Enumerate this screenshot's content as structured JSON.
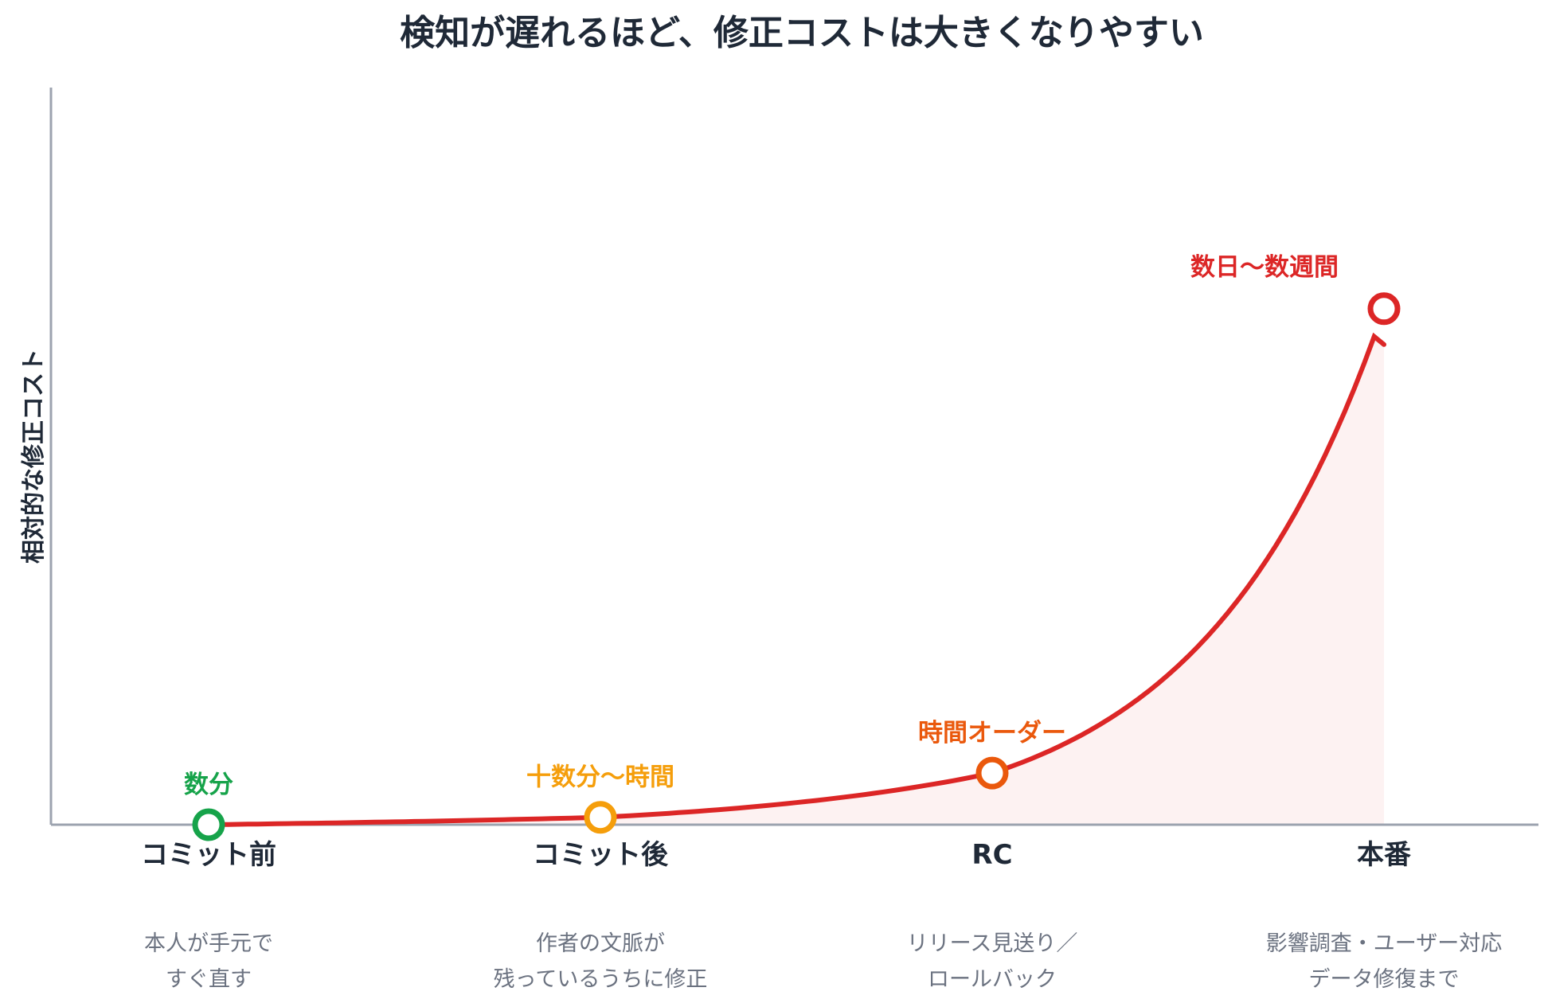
{
  "chart_data": {
    "type": "line",
    "title": "検知が遅れるほど、修正コストは大きくなりやすい",
    "ylabel": "相対的な修正コスト",
    "xlabel": "",
    "categories": [
      "コミット前",
      "コミット後",
      "RC",
      "本番"
    ],
    "descriptions": [
      [
        "本人が手元で",
        "すぐ直す"
      ],
      [
        "作者の文脈が",
        "残っているうちに修正"
      ],
      [
        "リリース見送り／",
        "ロールバック"
      ],
      [
        "影響調査・ユーザー対応",
        "データ修復まで"
      ]
    ],
    "point_labels": [
      "数分",
      "十数分〜時間",
      "時間オーダー",
      "数日〜数週間"
    ],
    "values": [
      0,
      1,
      7,
      70
    ],
    "ylim": [
      0,
      100
    ],
    "grid": false,
    "colors": {
      "points": [
        "#16a34a",
        "#f59e0b",
        "#ea580c",
        "#dc2626"
      ],
      "curve": "#dc2626",
      "fill": "#fdf2f2",
      "axis": "#9ca3af"
    }
  }
}
